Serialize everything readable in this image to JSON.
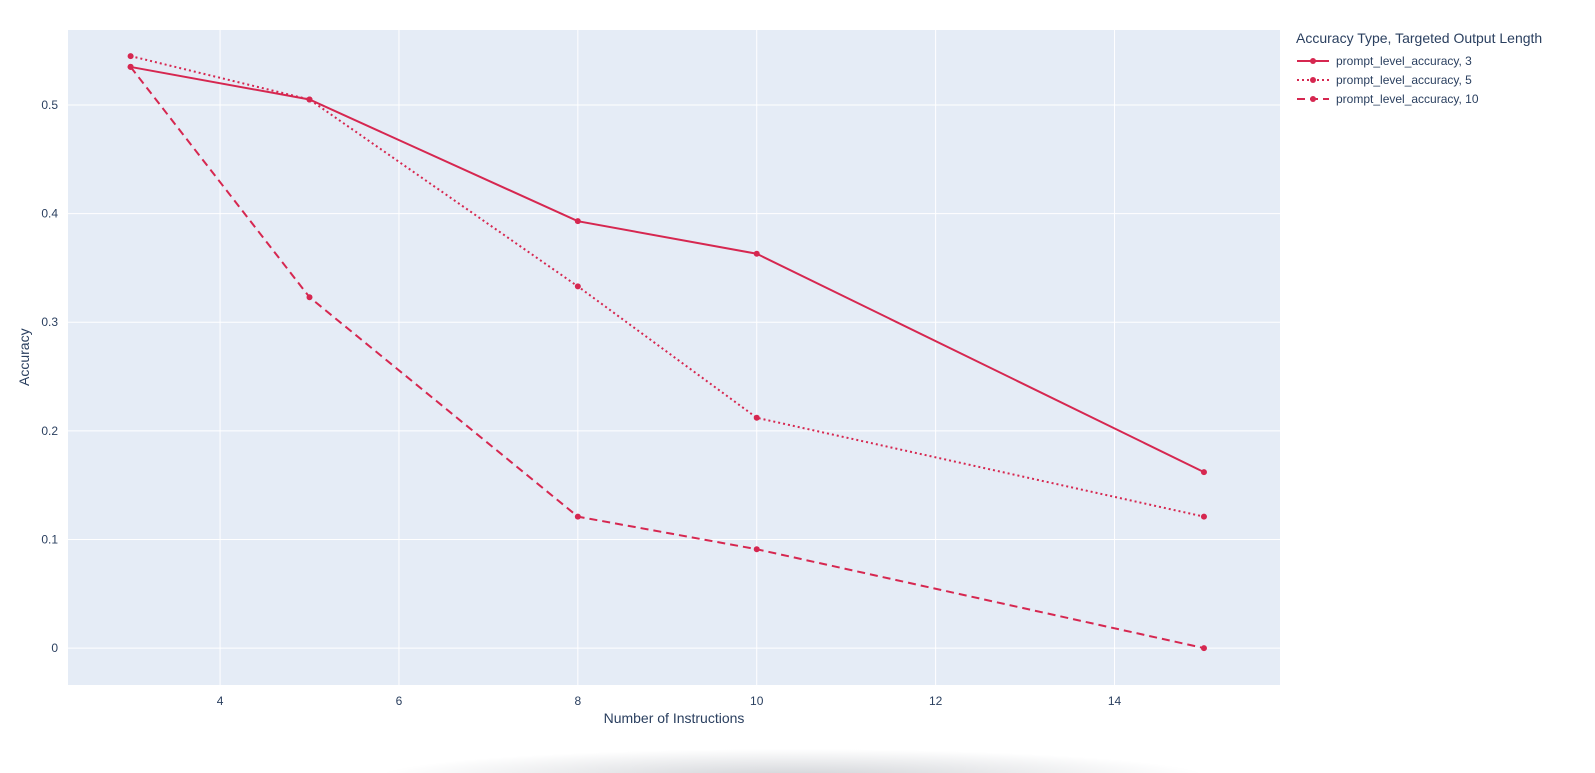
{
  "chart_data": {
    "type": "line",
    "title": "",
    "xlabel": "Number of Instructions",
    "ylabel": "Accuracy",
    "legend_title": "Accuracy Type, Targeted Output Length",
    "legend_position": "top-right-outside",
    "plot_bg": "#e5ecf6",
    "grid_color": "#ffffff",
    "grid": true,
    "text_color": "#2a3f5f",
    "line_color": "#d62750",
    "x_ticks": [
      4,
      6,
      8,
      10,
      12,
      14
    ],
    "y_ticks": [
      0,
      0.1,
      0.2,
      0.3,
      0.4,
      0.5
    ],
    "x_range": [
      2.3,
      15.85
    ],
    "y_range": [
      -0.034,
      0.569
    ],
    "x": [
      3,
      5,
      8,
      10,
      15
    ],
    "series": [
      {
        "name": "prompt_level_accuracy, 3",
        "dash": "solid",
        "values": [
          0.535,
          0.505,
          0.393,
          0.363,
          0.162
        ]
      },
      {
        "name": "prompt_level_accuracy, 5",
        "dash": "dot",
        "values": [
          0.545,
          0.505,
          0.333,
          0.212,
          0.121
        ]
      },
      {
        "name": "prompt_level_accuracy, 10",
        "dash": "dash",
        "values": [
          0.535,
          0.323,
          0.121,
          0.091,
          0.0
        ]
      }
    ]
  }
}
